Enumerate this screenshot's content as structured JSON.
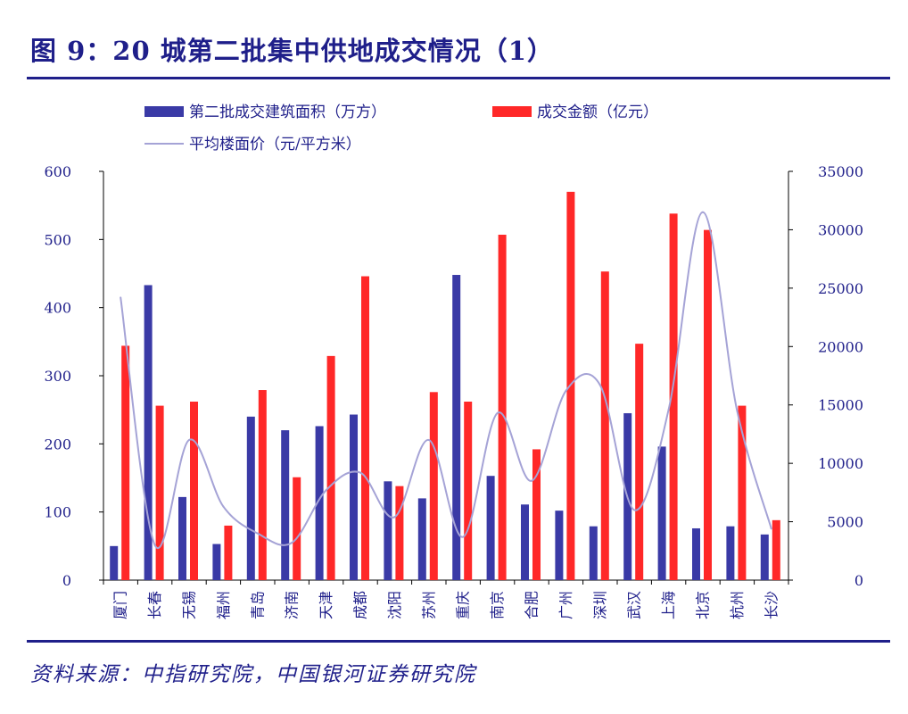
{
  "title": "图 9：20 城第二批集中供地成交情况（1）",
  "source": "资料来源：中指研究院，中国银河证券研究院",
  "colors": {
    "area_bar": "#3a3aa6",
    "amount_bar": "#ff2828",
    "price_line": "#a5a3d6",
    "axis": "#000000",
    "text": "#1f1f8a"
  },
  "chart_data": {
    "type": "bar",
    "categories": [
      "厦门",
      "长春",
      "无锡",
      "福州",
      "青岛",
      "济南",
      "天津",
      "成都",
      "沈阳",
      "苏州",
      "重庆",
      "南京",
      "合肥",
      "广州",
      "深圳",
      "武汉",
      "上海",
      "北京",
      "杭州",
      "长沙"
    ],
    "series": [
      {
        "name": "第二批成交建筑面积（万方）",
        "type": "bar",
        "axis": "left",
        "color": "#3a3aa6",
        "values": [
          50,
          433,
          122,
          53,
          240,
          220,
          226,
          243,
          145,
          120,
          448,
          153,
          111,
          102,
          79,
          245,
          196,
          76,
          79,
          67
        ]
      },
      {
        "name": "成交金额（亿元）",
        "type": "bar",
        "axis": "left",
        "color": "#ff2828",
        "values": [
          344,
          256,
          262,
          80,
          279,
          151,
          329,
          446,
          138,
          276,
          262,
          507,
          192,
          570,
          453,
          347,
          538,
          514,
          256,
          88
        ]
      },
      {
        "name": "平均楼面价（元/平方米）",
        "type": "line",
        "axis": "right",
        "color": "#a5a3d6",
        "values": [
          24200,
          3000,
          12000,
          6300,
          4000,
          3200,
          7700,
          9200,
          5400,
          12000,
          3700,
          14300,
          8500,
          16200,
          16700,
          6000,
          14600,
          31500,
          14500,
          4400
        ]
      }
    ],
    "ylim": [
      0,
      600
    ],
    "yticks": [
      "0",
      "100",
      "200",
      "300",
      "400",
      "500",
      "600"
    ],
    "y2lim": [
      0,
      35000
    ],
    "y2ticks": [
      "0",
      "5000",
      "10000",
      "15000",
      "20000",
      "25000",
      "30000",
      "35000"
    ],
    "grid": false,
    "legend_position": "top"
  }
}
